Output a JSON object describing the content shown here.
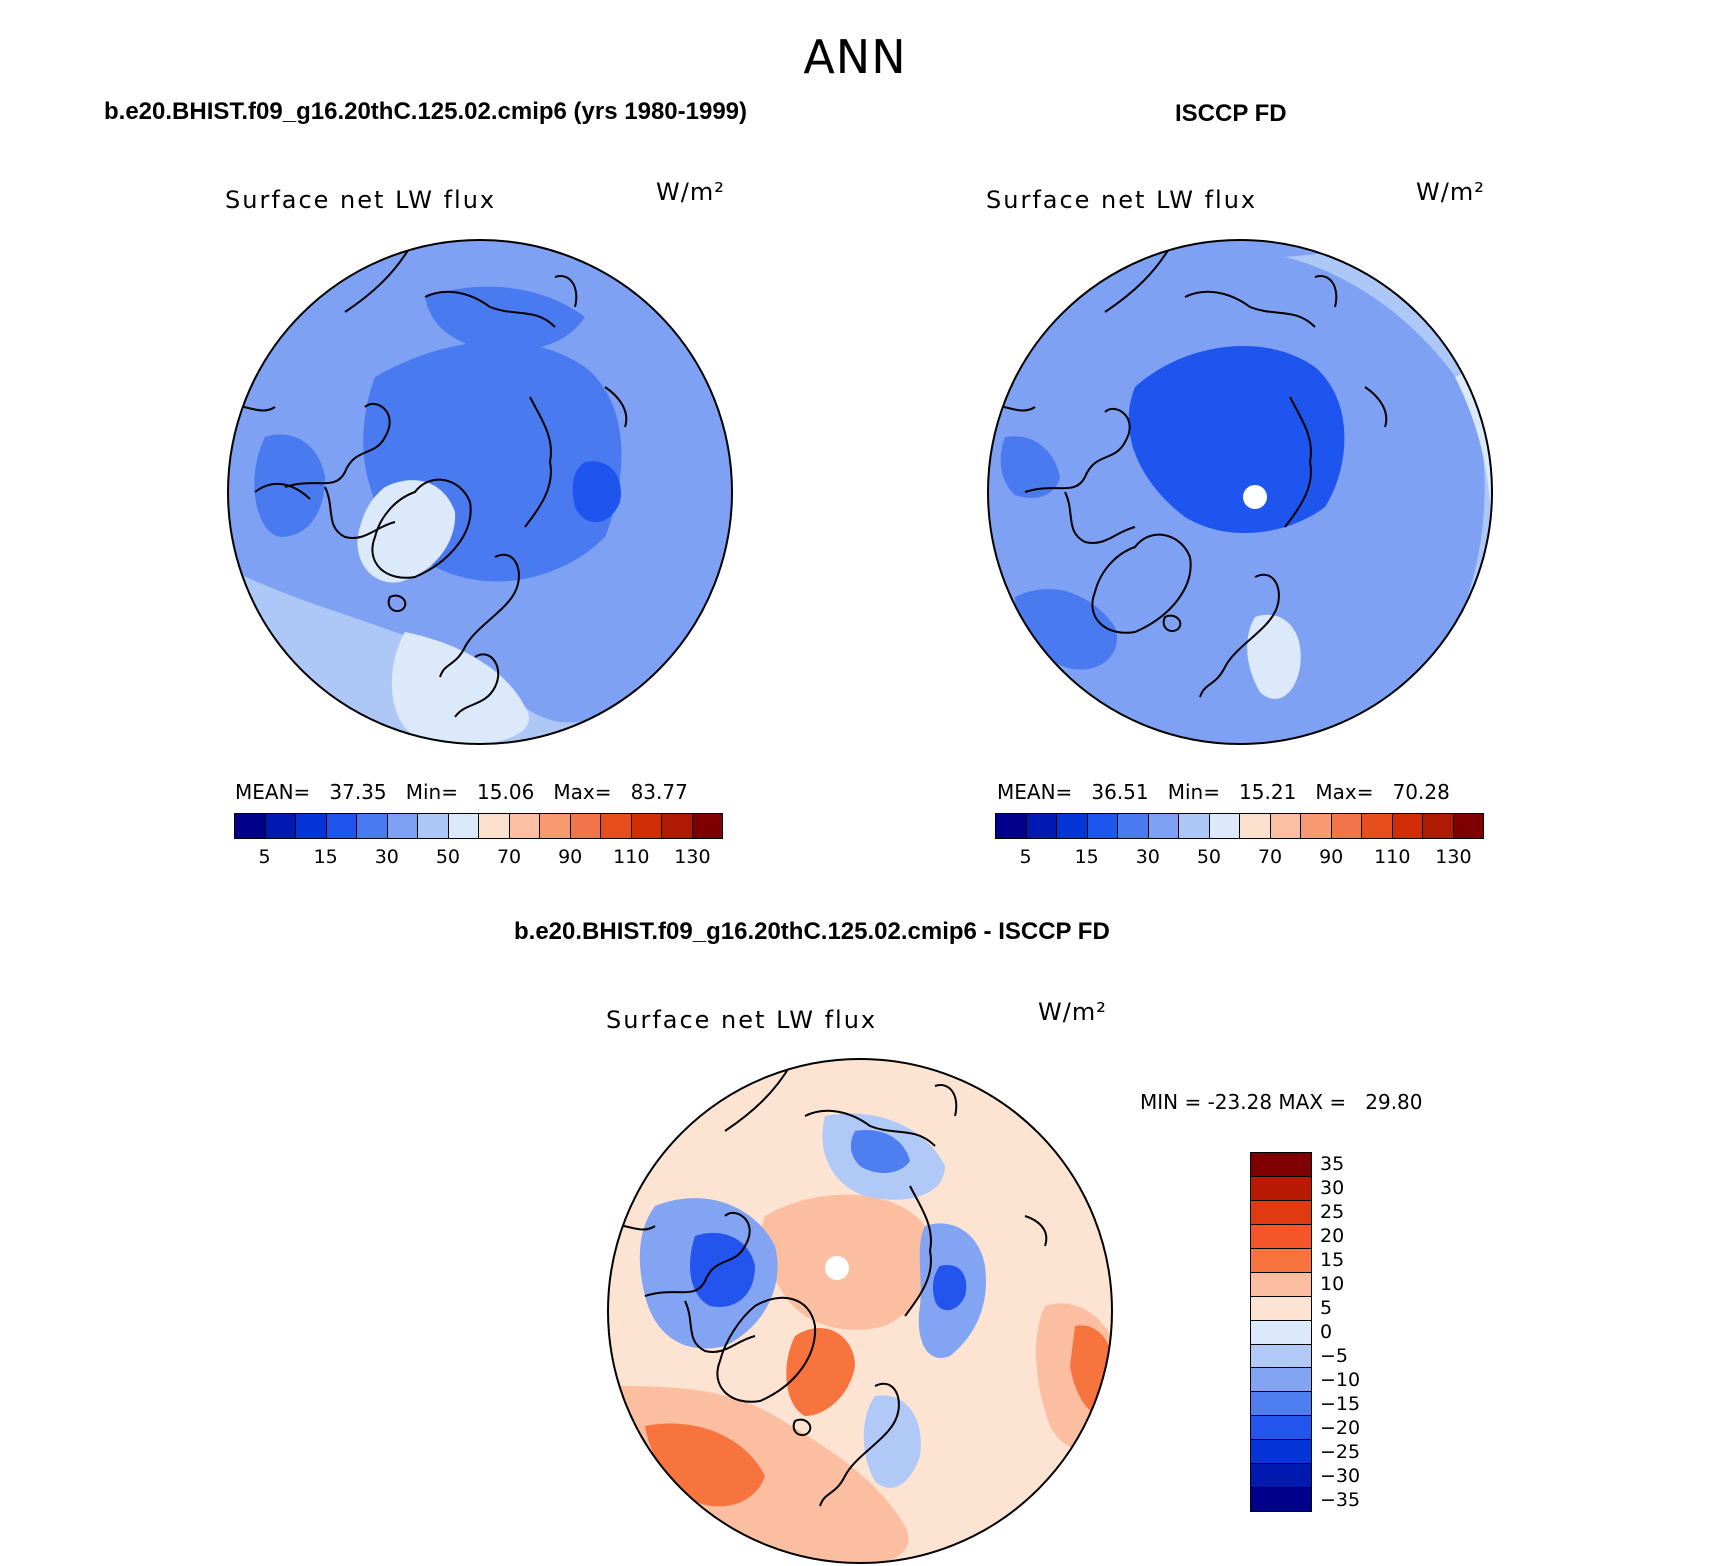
{
  "page": {
    "title": "ANN"
  },
  "chart_data": [
    {
      "type": "heatmap",
      "panel": "model",
      "header": "b.e20.BHIST.f09_g16.20thC.125.02.cmip6 (yrs 1980-1999)",
      "title": "Surface net LW flux",
      "units": "W/m²",
      "stats": {
        "mean_label": "MEAN=",
        "mean": "37.35",
        "min_label": "Min=",
        "min": "15.06",
        "max_label": "Max=",
        "max": "83.77"
      },
      "colorbar": {
        "levels": [
          "5",
          "15",
          "30",
          "50",
          "70",
          "90",
          "110",
          "130"
        ],
        "colors": [
          "#00008a",
          "#0019b0",
          "#0535d8",
          "#1f55ef",
          "#4a7aef",
          "#7ea1f4",
          "#adc7f6",
          "#dce9fb",
          "#fde1cf",
          "#fbbfa2",
          "#f79a72",
          "#f2744a",
          "#e84e1d",
          "#d02c06",
          "#ae1a04",
          "#7f0000"
        ]
      },
      "map": {
        "projection": "north polar stereographic",
        "dominant": "blue (20-60 W/m²)",
        "missing_pole": false
      }
    },
    {
      "type": "heatmap",
      "panel": "obs",
      "header": "ISCCP FD",
      "title": "Surface net LW flux",
      "units": "W/m²",
      "stats": {
        "mean_label": "MEAN=",
        "mean": "36.51",
        "min_label": "Min=",
        "min": "15.21",
        "max_label": "Max=",
        "max": "70.28"
      },
      "colorbar": {
        "levels": [
          "5",
          "15",
          "30",
          "50",
          "70",
          "90",
          "110",
          "130"
        ],
        "colors": [
          "#00008a",
          "#0019b0",
          "#0535d8",
          "#1f55ef",
          "#4a7aef",
          "#7ea1f4",
          "#adc7f6",
          "#dce9fb",
          "#fde1cf",
          "#fbbfa2",
          "#f79a72",
          "#f2744a",
          "#e84e1d",
          "#d02c06",
          "#ae1a04",
          "#7f0000"
        ]
      },
      "map": {
        "projection": "north polar stereographic",
        "dominant": "blue (20-60 W/m²)",
        "missing_pole": true
      }
    },
    {
      "type": "heatmap",
      "panel": "difference",
      "header": "b.e20.BHIST.f09_g16.20thC.125.02.cmip6 - ISCCP FD",
      "title": "Surface net LW flux",
      "units": "W/m²",
      "stats": {
        "label": "MIN = -23.28 MAX =   29.80",
        "min": "-23.28",
        "max": "29.80"
      },
      "colorbar": {
        "levels": [
          "35",
          "30",
          "25",
          "20",
          "15",
          "10",
          "5",
          "0",
          "−5",
          "−10",
          "−15",
          "−20",
          "−25",
          "−30",
          "−35"
        ],
        "colors": [
          "#7f0000",
          "#b81a04",
          "#e03a10",
          "#f4562a",
          "#f7743f",
          "#fbbea0",
          "#fde4d2",
          "#dbe9fb",
          "#b0c9f6",
          "#82a4f3",
          "#4f7ef0",
          "#2355ee",
          "#0535d8",
          "#0019b0",
          "#00008a"
        ]
      },
      "map": {
        "projection": "north polar stereographic",
        "dominant": "mixed: positive over central Arctic/N. Atlantic, negative over Canada/Siberia",
        "missing_pole": true
      }
    }
  ]
}
